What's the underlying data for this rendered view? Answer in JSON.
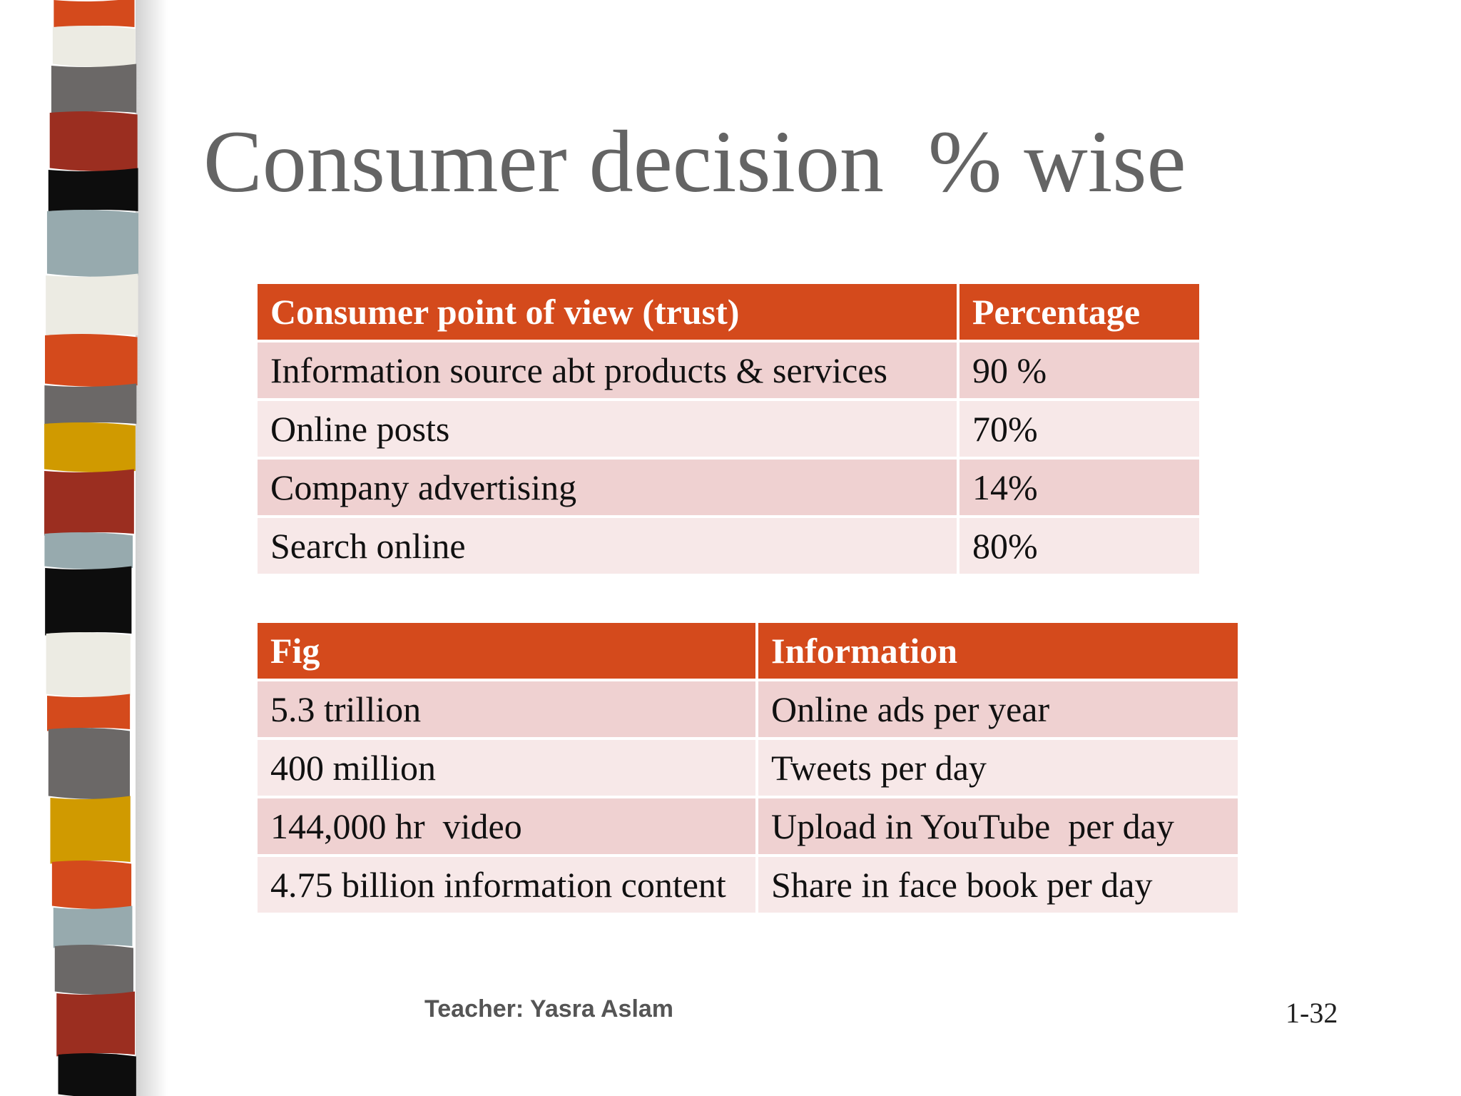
{
  "title": "Consumer decision  % wise",
  "table_trust": {
    "headers": [
      "Consumer point of view (trust)",
      "Percentage"
    ],
    "rows": [
      [
        "Information source abt products & services",
        "90 %"
      ],
      [
        "Online posts",
        "70%"
      ],
      [
        "Company advertising",
        "14%"
      ],
      [
        "Search online",
        "80%"
      ]
    ]
  },
  "table_figs": {
    "headers": [
      "Fig",
      "Information"
    ],
    "rows": [
      [
        "5.3 trillion",
        "Online ads per year"
      ],
      [
        "400 million",
        "Tweets per day"
      ],
      [
        "144,000 hr  video",
        "Upload in YouTube  per day"
      ],
      [
        "4.75 billion information content",
        "Share in face book per day"
      ]
    ]
  },
  "footer": {
    "teacher": "Teacher: Yasra Aslam",
    "slide_number": "1-32"
  },
  "colors": {
    "header_bg": "#d44a1c",
    "row_odd": "#efd1d1",
    "row_even": "#f7e8e8",
    "title": "#646464",
    "stripe_palette": [
      "#d44a1c",
      "#ecebe3",
      "#6b6867",
      "#9b2e20",
      "#0d0d0d",
      "#97aaae",
      "#d09a00"
    ]
  }
}
